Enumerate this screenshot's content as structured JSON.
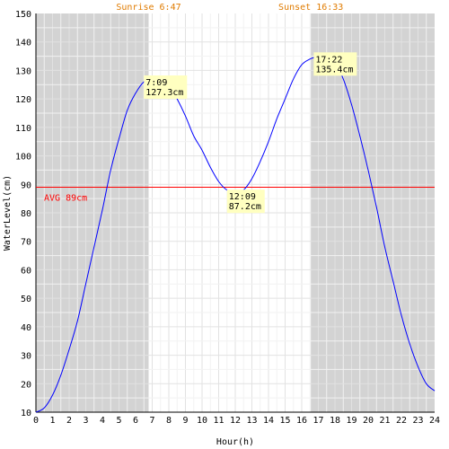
{
  "chart_data": {
    "type": "line",
    "xlabel": "Hour(h)",
    "ylabel": "WaterLevel(cm)",
    "xlim": [
      0,
      24
    ],
    "ylim": [
      10,
      150
    ],
    "x_ticks": [
      "0",
      "1",
      "2",
      "3",
      "4",
      "5",
      "6",
      "7",
      "8",
      "9",
      "10",
      "11",
      "12",
      "13",
      "14",
      "15",
      "16",
      "17",
      "18",
      "19",
      "20",
      "21",
      "22",
      "23",
      "24"
    ],
    "y_ticks": [
      "10",
      "20",
      "30",
      "40",
      "50",
      "60",
      "70",
      "80",
      "90",
      "100",
      "110",
      "120",
      "130",
      "140",
      "150"
    ],
    "grid": true,
    "sunrise": {
      "label": "Sunrise 6:47",
      "hour": 6.783
    },
    "sunset": {
      "label": "Sunset 16:33",
      "hour": 16.55
    },
    "average": {
      "label": "AVG 89cm",
      "value": 89
    },
    "series": [
      {
        "x": [
          0,
          0.5,
          1,
          1.5,
          2,
          2.5,
          3,
          3.5,
          4,
          4.5,
          5,
          5.5,
          6,
          6.5,
          7,
          7.15,
          7.5,
          8,
          8.5,
          9,
          9.5,
          10,
          10.5,
          11,
          11.5,
          12,
          12.15,
          12.5,
          13,
          13.5,
          14,
          14.5,
          15,
          15.5,
          16,
          16.5,
          17,
          17.37,
          17.5,
          18,
          18.5,
          19,
          19.5,
          20,
          20.5,
          21,
          21.5,
          22,
          22.5,
          23,
          23.5,
          24
        ],
        "values": [
          10,
          11.5,
          16,
          23,
          32,
          42,
          55,
          68,
          81,
          95,
          106,
          116,
          122,
          126,
          127,
          127.3,
          127,
          125,
          120,
          114,
          107,
          102,
          96,
          91,
          88,
          87.3,
          87.2,
          88,
          92,
          98,
          105,
          113,
          120,
          127,
          132,
          134,
          135,
          135.4,
          135,
          133,
          127,
          118,
          107,
          95,
          82,
          68,
          56,
          44,
          34,
          26,
          20,
          17.5
        ]
      }
    ],
    "annotations": [
      {
        "time": "7:09",
        "value": "127.3cm",
        "x": 7.15,
        "y": 127.3
      },
      {
        "time": "12:09",
        "value": "87.2cm",
        "x": 12.15,
        "y": 87.2
      },
      {
        "time": "17:22",
        "value": "135.4cm",
        "x": 17.37,
        "y": 135.4
      }
    ],
    "colors": {
      "night_band": "#d3d3d3",
      "sun_label": "#e07b00",
      "line": "#0000ff",
      "average": "#ff0000",
      "annotation_bg": "#ffffc0",
      "grid_light": "#e2e2e2",
      "grid_dark": "#f2f2f2"
    }
  }
}
